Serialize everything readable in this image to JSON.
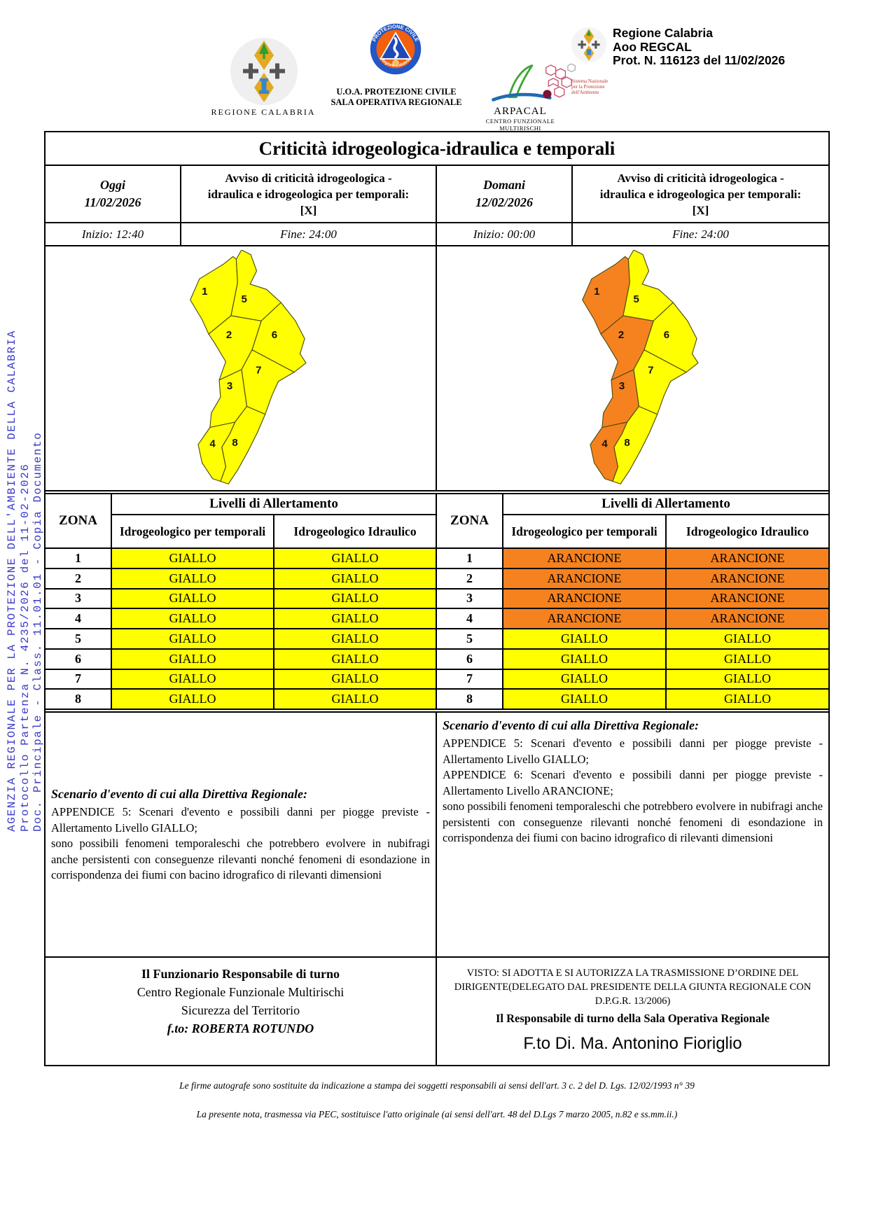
{
  "side_text": {
    "line1": "AGENZIA REGIONALE PER LA PROTEZIONE DELL'AMBIENTE DELLA CALABRIA",
    "line2": "Protocollo Partenza N. 4235/2026 del 11-02-2026",
    "line3": "Doc. Principale - Class. 11.01.01 - Copia Documento"
  },
  "protocol_stamp": {
    "line1": "Regione Calabria",
    "line2": "Aoo REGCAL",
    "line3": "Prot. N. 116123 del 11/02/2026"
  },
  "logos": {
    "regione_caption": "REGIONE CALABRIA",
    "pc_ring_top": "PROTEZIONE CIVILE",
    "pc_ring_bottom": "Regione Calabria",
    "pc_caption1": "U.O.A. PROTEZIONE CIVILE",
    "pc_caption2": "SALA OPERATIVA REGIONALE",
    "arpacal_caption1": "ARPACAL",
    "arpacal_caption2": "CENTRO FUNZIONALE MULTIRISCHI",
    "snpa_caption1": "Sistema Nazionale",
    "snpa_caption2": "per la Protezione",
    "snpa_caption3": "dell'Ambiente"
  },
  "bulletin": {
    "title": "Criticità idrogeologica-idraulica e temporali",
    "today": {
      "day_label": "Oggi",
      "date": "11/02/2026",
      "avviso": "Avviso di criticità idrogeologica - idraulica e idrogeologica per temporali: [X]",
      "inizio": "Inizio: 12:40",
      "fine": "Fine: 24:00"
    },
    "tomorrow": {
      "day_label": "Domani",
      "date": "12/02/2026",
      "avviso": "Avviso di criticità idrogeologica - idraulica e idrogeologica per temporali: [X]",
      "inizio": "Inizio: 00:00",
      "fine": "Fine: 24:00"
    }
  },
  "alert_table": {
    "zona_header": "ZONA",
    "levels_header": "Livelli di Allertamento",
    "col1_header": "Idrogeologico per temporali",
    "col2_header": "Idrogeologico Idraulico",
    "today_rows": [
      {
        "zona": "1",
        "temporali": "GIALLO",
        "idraulico": "GIALLO"
      },
      {
        "zona": "2",
        "temporali": "GIALLO",
        "idraulico": "GIALLO"
      },
      {
        "zona": "3",
        "temporali": "GIALLO",
        "idraulico": "GIALLO"
      },
      {
        "zona": "4",
        "temporali": "GIALLO",
        "idraulico": "GIALLO"
      },
      {
        "zona": "5",
        "temporali": "GIALLO",
        "idraulico": "GIALLO"
      },
      {
        "zona": "6",
        "temporali": "GIALLO",
        "idraulico": "GIALLO"
      },
      {
        "zona": "7",
        "temporali": "GIALLO",
        "idraulico": "GIALLO"
      },
      {
        "zona": "8",
        "temporali": "GIALLO",
        "idraulico": "GIALLO"
      }
    ],
    "tomorrow_rows": [
      {
        "zona": "1",
        "temporali": "ARANCIONE",
        "idraulico": "ARANCIONE"
      },
      {
        "zona": "2",
        "temporali": "ARANCIONE",
        "idraulico": "ARANCIONE"
      },
      {
        "zona": "3",
        "temporali": "ARANCIONE",
        "idraulico": "ARANCIONE"
      },
      {
        "zona": "4",
        "temporali": "ARANCIONE",
        "idraulico": "ARANCIONE"
      },
      {
        "zona": "5",
        "temporali": "GIALLO",
        "idraulico": "GIALLO"
      },
      {
        "zona": "6",
        "temporali": "GIALLO",
        "idraulico": "GIALLO"
      },
      {
        "zona": "7",
        "temporali": "GIALLO",
        "idraulico": "GIALLO"
      },
      {
        "zona": "8",
        "temporali": "GIALLO",
        "idraulico": "GIALLO"
      }
    ]
  },
  "colors": {
    "giallo": "#FFFF00",
    "arancione": "#F5821F",
    "side_text_blue": "#3A3AC8"
  },
  "maps": {
    "zone_labels": [
      "1",
      "2",
      "3",
      "4",
      "5",
      "6",
      "7",
      "8"
    ],
    "today": {
      "1": "giallo",
      "2": "giallo",
      "3": "giallo",
      "4": "giallo",
      "5": "giallo",
      "6": "giallo",
      "7": "giallo",
      "8": "giallo"
    },
    "tomorrow": {
      "1": "arancione",
      "2": "arancione",
      "3": "arancione",
      "4": "arancione",
      "5": "giallo",
      "6": "giallo",
      "7": "giallo",
      "8": "giallo"
    }
  },
  "scenario": {
    "title": "Scenario d'evento di cui alla Direttiva Regionale:",
    "today_lines": [
      "APPENDICE 5: Scenari d'evento e possibili danni per piogge previste - Allertamento Livello GIALLO;",
      "sono possibili fenomeni temporaleschi che potrebbero evolvere in nubifragi anche persistenti con conseguenze rilevanti nonché fenomeni di esondazione in corrispondenza dei fiumi con bacino idrografico di rilevanti dimensioni"
    ],
    "tomorrow_lines": [
      "APPENDICE 5: Scenari d'evento e possibili danni per piogge previste - Allertamento Livello GIALLO;",
      "APPENDICE 6: Scenari d'evento e possibili danni per piogge previste - Allertamento Livello ARANCIONE;",
      "sono possibili fenomeni temporaleschi che potrebbero evolvere in nubifragi anche persistenti con conseguenze rilevanti nonché fenomeni di esondazione in corrispondenza dei fiumi con bacino idrografico di rilevanti dimensioni"
    ]
  },
  "signatures": {
    "left": {
      "line1": "Il Funzionario Responsabile di turno",
      "line2": "Centro Regionale Funzionale Multirischi",
      "line3": "Sicurezza del Territorio",
      "line4": "f.to: ROBERTA ROTUNDO"
    },
    "right": {
      "visto": "VISTO: SI ADOTTA E SI AUTORIZZA LA TRASMISSIONE D’ORDINE DEL DIRIGENTE(DELEGATO DAL PRESIDENTE DELLA GIUNTA REGIONALE CON D.P.G.R. 13/2006)",
      "role": "Il Responsabile di turno della Sala Operativa Regionale",
      "name": "F.to Di. Ma. Antonino Fioriglio"
    }
  },
  "footer": {
    "note1": "Le firme autografe sono sostituite da indicazione a stampa dei soggetti responsabili ai sensi dell'art. 3 c. 2 del D. Lgs. 12/02/1993 n° 39",
    "note2": "La presente nota, trasmessa via PEC, sostituisce l'atto originale (ai sensi dell'art. 48 del D.Lgs 7 marzo 2005, n.82 e ss.mm.ii.)"
  }
}
